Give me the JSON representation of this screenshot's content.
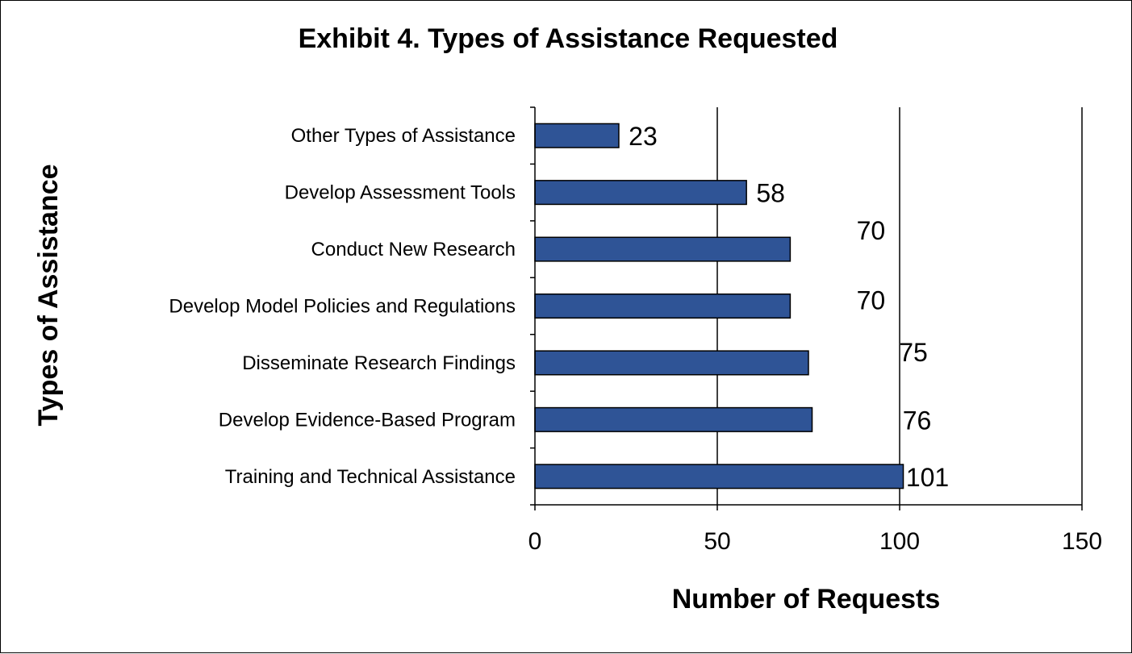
{
  "chart_data": {
    "type": "bar",
    "orientation": "horizontal",
    "title": "Exhibit 4. Types of Assistance Requested",
    "xlabel": "Number of Requests",
    "ylabel": "Types of Assistance",
    "categories": [
      "Other Types of Assistance",
      "Develop Assessment Tools",
      "Conduct New Research",
      "Develop Model Policies and Regulations",
      "Disseminate Research Findings",
      "Develop Evidence-Based Program",
      "Training and Technical Assistance"
    ],
    "values": [
      23,
      58,
      70,
      70,
      75,
      76,
      101
    ],
    "data_labels": [
      "23",
      "58",
      "70",
      "70",
      "75",
      "76",
      "101"
    ],
    "xlim": [
      0,
      150
    ],
    "xticks": [
      0,
      50,
      100,
      150
    ],
    "xtick_labels": [
      "0",
      "50",
      "100",
      "150"
    ],
    "grid": "vertical",
    "legend": "none",
    "colors": {
      "bar": "#2F5496",
      "bar_edge": "#000000"
    }
  }
}
